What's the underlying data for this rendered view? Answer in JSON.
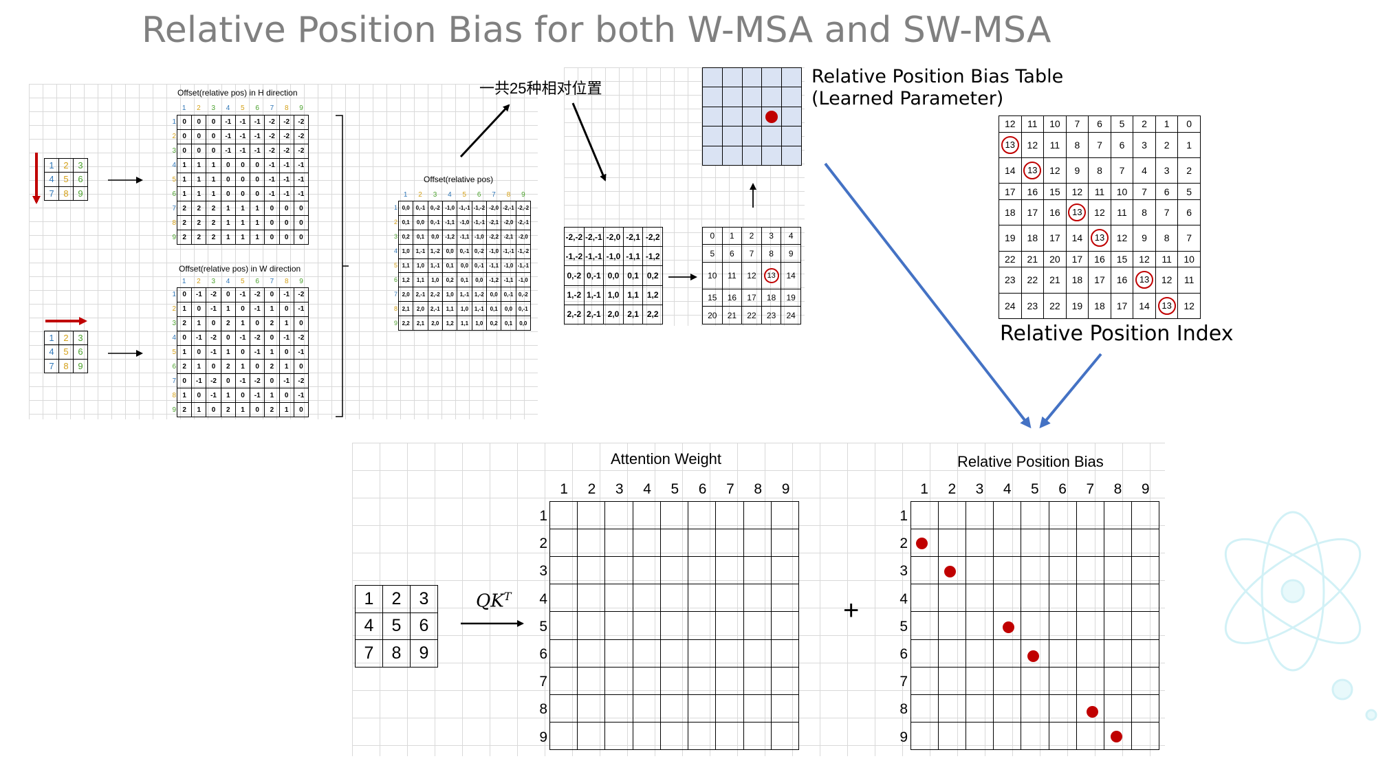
{
  "title": "Relative Position Bias for both W-MSA and SW-MSA",
  "h_offset": {
    "title": "Offset(relative pos) in H direction",
    "col_headers": [
      "1",
      "2",
      "3",
      "4",
      "5",
      "6",
      "7",
      "8",
      "9"
    ],
    "rows": [
      [
        "0",
        "0",
        "0",
        "-1",
        "-1",
        "-1",
        "-2",
        "-2",
        "-2"
      ],
      [
        "0",
        "0",
        "0",
        "-1",
        "-1",
        "-1",
        "-2",
        "-2",
        "-2"
      ],
      [
        "0",
        "0",
        "0",
        "-1",
        "-1",
        "-1",
        "-2",
        "-2",
        "-2"
      ],
      [
        "1",
        "1",
        "1",
        "0",
        "0",
        "0",
        "-1",
        "-1",
        "-1"
      ],
      [
        "1",
        "1",
        "1",
        "0",
        "0",
        "0",
        "-1",
        "-1",
        "-1"
      ],
      [
        "1",
        "1",
        "1",
        "0",
        "0",
        "0",
        "-1",
        "-1",
        "-1"
      ],
      [
        "2",
        "2",
        "2",
        "1",
        "1",
        "1",
        "0",
        "0",
        "0"
      ],
      [
        "2",
        "2",
        "2",
        "1",
        "1",
        "1",
        "0",
        "0",
        "0"
      ],
      [
        "2",
        "2",
        "2",
        "1",
        "1",
        "1",
        "0",
        "0",
        "0"
      ]
    ]
  },
  "w_offset": {
    "title": "Offset(relative pos) in W direction",
    "col_headers": [
      "1",
      "2",
      "3",
      "4",
      "5",
      "6",
      "7",
      "8",
      "9"
    ],
    "rows": [
      [
        "0",
        "-1",
        "-2",
        "0",
        "-1",
        "-2",
        "0",
        "-1",
        "-2"
      ],
      [
        "1",
        "0",
        "-1",
        "1",
        "0",
        "-1",
        "1",
        "0",
        "-1"
      ],
      [
        "2",
        "1",
        "0",
        "2",
        "1",
        "0",
        "2",
        "1",
        "0"
      ],
      [
        "0",
        "-1",
        "-2",
        "0",
        "-1",
        "-2",
        "0",
        "-1",
        "-2"
      ],
      [
        "1",
        "0",
        "-1",
        "1",
        "0",
        "-1",
        "1",
        "0",
        "-1"
      ],
      [
        "2",
        "1",
        "0",
        "2",
        "1",
        "0",
        "2",
        "1",
        "0"
      ],
      [
        "0",
        "-1",
        "-2",
        "0",
        "-1",
        "-2",
        "0",
        "-1",
        "-2"
      ],
      [
        "1",
        "0",
        "-1",
        "1",
        "0",
        "-1",
        "1",
        "0",
        "-1"
      ],
      [
        "2",
        "1",
        "0",
        "2",
        "1",
        "0",
        "2",
        "1",
        "0"
      ]
    ]
  },
  "small_grid": [
    "1",
    "2",
    "3",
    "4",
    "5",
    "6",
    "7",
    "8",
    "9"
  ],
  "offset_combined": {
    "title": "Offset(relative pos)",
    "col_headers": [
      "1",
      "2",
      "3",
      "4",
      "5",
      "6",
      "7",
      "8",
      "9"
    ],
    "rows": [
      [
        "0,0",
        "0,-1",
        "0,-2",
        "-1,0",
        "-1,-1",
        "-1,-2",
        "-2,0",
        "-2,-1",
        "-2,-2"
      ],
      [
        "0,1",
        "0,0",
        "0,-1",
        "-1,1",
        "-1,0",
        "-1,-1",
        "-2,1",
        "-2,0",
        "-2,-1"
      ],
      [
        "0,2",
        "0,1",
        "0,0",
        "-1,2",
        "-1,1",
        "-1,0",
        "-2,2",
        "-2,1",
        "-2,0"
      ],
      [
        "1,0",
        "1,-1",
        "1,-2",
        "0,0",
        "0,-1",
        "0,-2",
        "-1,0",
        "-1,-1",
        "-1,-2"
      ],
      [
        "1,1",
        "1,0",
        "1,-1",
        "0,1",
        "0,0",
        "0,-1",
        "-1,1",
        "-1,0",
        "-1,-1"
      ],
      [
        "1,2",
        "1,1",
        "1,0",
        "0,2",
        "0,1",
        "0,0",
        "-1,2",
        "-1,1",
        "-1,0"
      ],
      [
        "2,0",
        "2,-1",
        "2,-2",
        "1,0",
        "1,-1",
        "1,-2",
        "0,0",
        "0,-1",
        "0,-2"
      ],
      [
        "2,1",
        "2,0",
        "2,-1",
        "1,1",
        "1,0",
        "1,-1",
        "0,1",
        "0,0",
        "0,-1"
      ],
      [
        "2,2",
        "2,1",
        "2,0",
        "1,2",
        "1,1",
        "1,0",
        "0,2",
        "0,1",
        "0,0"
      ]
    ]
  },
  "label_25": "一共25种相对位置",
  "offset_5x5": [
    [
      "-2,-2",
      "-2,-1",
      "-2,0",
      "-2,1",
      "-2,2"
    ],
    [
      "-1,-2",
      "-1,-1",
      "-1,0",
      "-1,1",
      "-1,2"
    ],
    [
      "0,-2",
      "0,-1",
      "0,0",
      "0,1",
      "0,2"
    ],
    [
      "1,-2",
      "1,-1",
      "1,0",
      "1,1",
      "1,2"
    ],
    [
      "2,-2",
      "2,-1",
      "2,0",
      "2,1",
      "2,2"
    ]
  ],
  "index_5x5": [
    [
      "0",
      "1",
      "2",
      "3",
      "4"
    ],
    [
      "5",
      "6",
      "7",
      "8",
      "9"
    ],
    [
      "10",
      "11",
      "12",
      "13",
      "14"
    ],
    [
      "15",
      "16",
      "17",
      "18",
      "19"
    ],
    [
      "20",
      "21",
      "22",
      "23",
      "24"
    ]
  ],
  "bias_table_label_line1": "Relative Position Bias Table",
  "bias_table_label_line2": "(Learned Parameter)",
  "rel_index": {
    "label": "Relative Position Index",
    "rows": [
      [
        "12",
        "11",
        "10",
        "7",
        "6",
        "5",
        "2",
        "1",
        "0"
      ],
      [
        "13",
        "12",
        "11",
        "8",
        "7",
        "6",
        "3",
        "2",
        "1"
      ],
      [
        "14",
        "13",
        "12",
        "9",
        "8",
        "7",
        "4",
        "3",
        "2"
      ],
      [
        "17",
        "16",
        "15",
        "12",
        "11",
        "10",
        "7",
        "6",
        "5"
      ],
      [
        "18",
        "17",
        "16",
        "13",
        "12",
        "11",
        "8",
        "7",
        "6"
      ],
      [
        "19",
        "18",
        "17",
        "14",
        "13",
        "12",
        "9",
        "8",
        "7"
      ],
      [
        "22",
        "21",
        "20",
        "17",
        "16",
        "15",
        "12",
        "11",
        "10"
      ],
      [
        "23",
        "22",
        "21",
        "18",
        "17",
        "16",
        "13",
        "12",
        "11"
      ],
      [
        "24",
        "23",
        "22",
        "19",
        "18",
        "17",
        "14",
        "13",
        "12"
      ]
    ]
  },
  "qk_label": "QK",
  "qk_sup": "T",
  "attention": {
    "title": "Attention Weight",
    "col_headers": [
      "1",
      "2",
      "3",
      "4",
      "5",
      "6",
      "7",
      "8",
      "9"
    ],
    "row_headers": [
      "1",
      "2",
      "3",
      "4",
      "5",
      "6",
      "7",
      "8",
      "9"
    ]
  },
  "bias": {
    "title": "Relative Position Bias",
    "col_headers": [
      "1",
      "2",
      "3",
      "4",
      "5",
      "6",
      "7",
      "8",
      "9"
    ],
    "row_headers": [
      "1",
      "2",
      "3",
      "4",
      "5",
      "6",
      "7",
      "8",
      "9"
    ]
  },
  "plus": "+",
  "colors": {
    "red": "#c00000",
    "blue_arrow": "#4472c4",
    "title_gray": "#808080",
    "bias_table_fill": "#dae3f3"
  }
}
